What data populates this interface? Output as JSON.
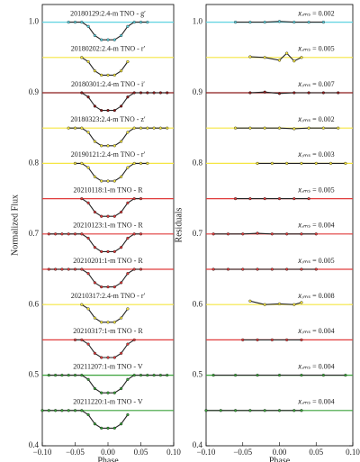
{
  "chart_data": [
    {
      "type": "line",
      "xlabel": "Phase",
      "ylabel": "Normalized Flux",
      "xlim": [
        -0.1,
        0.1
      ],
      "ylim": [
        0.4,
        1.025
      ],
      "xticks": [
        {
          "value": -0.1,
          "label": "−0.10"
        },
        {
          "value": -0.05,
          "label": "−0.05"
        },
        {
          "value": 0,
          "label": "0.00"
        },
        {
          "value": 0.05,
          "label": "0.05"
        },
        {
          "value": 0.1,
          "label": "0.10"
        }
      ],
      "yticks": [
        0.4,
        0.5,
        0.6,
        0.7,
        0.8,
        0.9,
        {
          "value": 1,
          "label": "1.0"
        }
      ],
      "series": [
        {
          "name": "20180129:2.4-m TNO - g′",
          "color": "#5fd3e0",
          "baseline": 1.0,
          "x": [
            -0.06,
            -0.05,
            -0.04,
            -0.03,
            -0.02,
            -0.01,
            0,
            0.01,
            0.02,
            0.03,
            0.04,
            0.05,
            0.06
          ],
          "values": [
            1,
            1,
            1,
            0.994,
            0.981,
            0.975,
            0.975,
            0.975,
            0.981,
            0.994,
            1,
            1,
            1
          ]
        },
        {
          "name": "20180202:2.4-m TNO - r′",
          "color": "#f5e642",
          "baseline": 0.95,
          "x": [
            -0.04,
            -0.03,
            -0.02,
            -0.01,
            0,
            0.01,
            0.02,
            0.03
          ],
          "values": [
            0.95,
            0.944,
            0.931,
            0.925,
            0.925,
            0.925,
            0.931,
            0.944
          ]
        },
        {
          "name": "20180301:2.4-m TNO - i′",
          "color": "#8b1a1a",
          "baseline": 0.9,
          "x": [
            -0.04,
            -0.03,
            -0.02,
            -0.01,
            0,
            0.01,
            0.02,
            0.03,
            0.04,
            0.05,
            0.06,
            0.07,
            0.08,
            0.09
          ],
          "values": [
            0.9,
            0.894,
            0.881,
            0.875,
            0.875,
            0.875,
            0.881,
            0.894,
            0.9,
            0.9,
            0.9,
            0.9,
            0.9,
            0.9
          ]
        },
        {
          "name": "20180323:2.4-m TNO - z′",
          "color": "#f5e642",
          "baseline": 0.85,
          "x": [
            -0.06,
            -0.05,
            -0.04,
            -0.03,
            -0.02,
            -0.01,
            0,
            0.01,
            0.02,
            0.03,
            0.04,
            0.05,
            0.06,
            0.07,
            0.08,
            0.09
          ],
          "values": [
            0.85,
            0.85,
            0.85,
            0.844,
            0.831,
            0.825,
            0.825,
            0.825,
            0.831,
            0.844,
            0.85,
            0.85,
            0.85,
            0.85,
            0.85,
            0.85
          ]
        },
        {
          "name": "20190121:2.4-m TNO - r′",
          "color": "#f5e642",
          "baseline": 0.8,
          "x": [
            -0.05,
            -0.04,
            -0.03,
            -0.02,
            -0.01,
            0,
            0.01,
            0.02,
            0.03,
            0.04,
            0.05,
            0.06
          ],
          "values": [
            0.8,
            0.8,
            0.794,
            0.781,
            0.775,
            0.775,
            0.775,
            0.781,
            0.794,
            0.8,
            0.8,
            0.8
          ]
        },
        {
          "name": "20210118:1-m TNO - R",
          "color": "#e03c3c",
          "baseline": 0.75,
          "x": [
            -0.04,
            -0.03,
            -0.02,
            -0.01,
            0,
            0.01,
            0.02,
            0.03,
            0.04,
            0.05
          ],
          "values": [
            0.75,
            0.744,
            0.731,
            0.725,
            0.725,
            0.725,
            0.731,
            0.744,
            0.75,
            0.75
          ]
        },
        {
          "name": "20210123:1-m TNO - R",
          "color": "#e03c3c",
          "baseline": 0.7,
          "x": [
            -0.09,
            -0.08,
            -0.07,
            -0.06,
            -0.05,
            -0.04,
            -0.03,
            -0.02,
            -0.01,
            0,
            0.01,
            0.02,
            0.03,
            0.04,
            0.05
          ],
          "values": [
            0.7,
            0.7,
            0.7,
            0.7,
            0.7,
            0.7,
            0.694,
            0.681,
            0.675,
            0.675,
            0.675,
            0.681,
            0.694,
            0.7,
            0.7
          ]
        },
        {
          "name": "20210201:1-m TNO - R",
          "color": "#e03c3c",
          "baseline": 0.65,
          "x": [
            -0.09,
            -0.08,
            -0.07,
            -0.06,
            -0.05,
            -0.04,
            -0.03,
            -0.02,
            -0.01,
            0,
            0.01,
            0.02,
            0.03,
            0.04,
            0.05
          ],
          "values": [
            0.65,
            0.65,
            0.65,
            0.65,
            0.65,
            0.65,
            0.644,
            0.631,
            0.625,
            0.625,
            0.625,
            0.631,
            0.644,
            0.65,
            0.65
          ]
        },
        {
          "name": "20210317:2.4-m TNO - r′",
          "color": "#f5e642",
          "baseline": 0.6,
          "x": [
            -0.04,
            -0.03,
            -0.02,
            -0.01,
            0,
            0.01,
            0.02,
            0.03
          ],
          "values": [
            0.6,
            0.594,
            0.581,
            0.575,
            0.575,
            0.575,
            0.581,
            0.594
          ]
        },
        {
          "name": "20210317:1-m TNO - R",
          "color": "#e03c3c",
          "baseline": 0.55,
          "x": [
            -0.05,
            -0.04,
            -0.03,
            -0.02,
            -0.01,
            0,
            0.01,
            0.02,
            0.03,
            0.04
          ],
          "values": [
            0.55,
            0.55,
            0.544,
            0.531,
            0.525,
            0.525,
            0.525,
            0.531,
            0.544,
            0.55
          ]
        },
        {
          "name": "20211207:1-m TNO - V",
          "color": "#3aa23a",
          "baseline": 0.5,
          "x": [
            -0.09,
            -0.08,
            -0.07,
            -0.06,
            -0.05,
            -0.04,
            -0.03,
            -0.02,
            -0.01,
            0,
            0.01,
            0.02,
            0.03,
            0.04,
            0.05,
            0.06,
            0.07,
            0.08,
            0.09
          ],
          "values": [
            0.5,
            0.5,
            0.5,
            0.5,
            0.5,
            0.5,
            0.494,
            0.481,
            0.475,
            0.475,
            0.475,
            0.481,
            0.494,
            0.5,
            0.5,
            0.5,
            0.5,
            0.5,
            0.5
          ]
        },
        {
          "name": "20211220:1-m TNO - V",
          "color": "#3aa23a",
          "baseline": 0.45,
          "x": [
            -0.1,
            -0.09,
            -0.08,
            -0.07,
            -0.06,
            -0.05,
            -0.04,
            -0.03,
            -0.02,
            -0.01,
            0,
            0.01,
            0.02,
            0.03
          ],
          "values": [
            0.45,
            0.45,
            0.45,
            0.45,
            0.45,
            0.45,
            0.45,
            0.444,
            0.431,
            0.425,
            0.425,
            0.425,
            0.431,
            0.444
          ]
        }
      ]
    },
    {
      "type": "line",
      "xlabel": "Phase",
      "ylabel": "Residuals",
      "xlim": [
        -0.1,
        0.1
      ],
      "ylim": [
        0.4,
        1.025
      ],
      "xticks": [
        {
          "value": -0.1,
          "label": "−0.10"
        },
        {
          "value": -0.05,
          "label": "−0.05"
        },
        {
          "value": 0,
          "label": "0.00"
        },
        {
          "value": 0.05,
          "label": "0.05"
        },
        {
          "value": 0.1,
          "label": "0.10"
        }
      ],
      "yticks": [
        0.4,
        0.5,
        0.6,
        0.7,
        0.8,
        0.9,
        {
          "value": 1,
          "label": "1.0"
        }
      ],
      "series": [
        {
          "name": "𝑥ᵣₘₛ = 0.002",
          "color": "#5fd3e0",
          "baseline": 1.0,
          "x": [
            -0.06,
            -0.04,
            -0.02,
            0,
            0.02,
            0.04,
            0.06
          ],
          "values": [
            1,
            1,
            1,
            1.001,
            1,
            1,
            1
          ]
        },
        {
          "name": "𝑥ᵣₘₛ = 0.005",
          "color": "#f5e642",
          "baseline": 0.95,
          "x": [
            -0.04,
            -0.02,
            0,
            0.01,
            0.02,
            0.03
          ],
          "values": [
            0.951,
            0.95,
            0.946,
            0.956,
            0.945,
            0.95
          ]
        },
        {
          "name": "𝑥ᵣₘₛ = 0.007",
          "color": "#8b1a1a",
          "baseline": 0.9,
          "x": [
            -0.04,
            -0.02,
            0,
            0.02,
            0.04,
            0.06,
            0.08
          ],
          "values": [
            0.9,
            0.901,
            0.899,
            0.9,
            0.9,
            0.9,
            0.9
          ]
        },
        {
          "name": "𝑥ᵣₘₛ = 0.002",
          "color": "#f5e642",
          "baseline": 0.85,
          "x": [
            -0.06,
            -0.04,
            -0.02,
            0,
            0.02,
            0.04,
            0.06,
            0.08
          ],
          "values": [
            0.85,
            0.85,
            0.85,
            0.85,
            0.849,
            0.85,
            0.85,
            0.85
          ]
        },
        {
          "name": "𝑥ᵣₘₛ = 0.003",
          "color": "#f5e642",
          "baseline": 0.8,
          "x": [
            -0.03,
            -0.01,
            0.01,
            0.03,
            0.05,
            0.07,
            0.09
          ],
          "values": [
            0.8,
            0.8,
            0.8,
            0.8,
            0.8,
            0.8,
            0.8
          ]
        },
        {
          "name": "𝑥ᵣₘₛ = 0.005",
          "color": "#e03c3c",
          "baseline": 0.75,
          "x": [
            -0.06,
            -0.04,
            -0.02,
            0,
            0.02,
            0.04
          ],
          "values": [
            0.75,
            0.75,
            0.75,
            0.75,
            0.75,
            0.75
          ]
        },
        {
          "name": "𝑥ᵣₘₛ = 0.004",
          "color": "#e03c3c",
          "baseline": 0.7,
          "x": [
            -0.09,
            -0.07,
            -0.05,
            -0.03,
            -0.01,
            0.01,
            0.03,
            0.05
          ],
          "values": [
            0.7,
            0.7,
            0.7,
            0.701,
            0.7,
            0.7,
            0.7,
            0.7
          ]
        },
        {
          "name": "𝑥ᵣₘₛ = 0.005",
          "color": "#e03c3c",
          "baseline": 0.65,
          "x": [
            -0.09,
            -0.07,
            -0.05,
            -0.03,
            -0.01,
            0.01,
            0.03,
            0.05
          ],
          "values": [
            0.65,
            0.65,
            0.65,
            0.65,
            0.65,
            0.65,
            0.65,
            0.65
          ]
        },
        {
          "name": "𝑥ᵣₘₛ = 0.008",
          "color": "#f5e642",
          "baseline": 0.6,
          "x": [
            -0.04,
            -0.02,
            0,
            0.02,
            0.03
          ],
          "values": [
            0.605,
            0.6,
            0.601,
            0.6,
            0.603
          ]
        },
        {
          "name": "𝑥ᵣₘₛ = 0.004",
          "color": "#e03c3c",
          "baseline": 0.55,
          "x": [
            -0.05,
            -0.03,
            -0.01,
            0.01,
            0.03
          ],
          "values": [
            0.55,
            0.55,
            0.55,
            0.55,
            0.55
          ]
        },
        {
          "name": "𝑥ᵣₘₛ = 0.004",
          "color": "#3aa23a",
          "baseline": 0.5,
          "x": [
            -0.09,
            -0.06,
            -0.03,
            0,
            0.03,
            0.06,
            0.09
          ],
          "values": [
            0.5,
            0.5,
            0.5,
            0.5,
            0.5,
            0.5,
            0.5
          ]
        },
        {
          "name": "𝑥ᵣₘₛ = 0.004",
          "color": "#3aa23a",
          "baseline": 0.45,
          "x": [
            -0.1,
            -0.08,
            -0.06,
            -0.04,
            -0.02,
            0,
            0.02,
            0.03
          ],
          "values": [
            0.45,
            0.45,
            0.45,
            0.45,
            0.45,
            0.45,
            0.45,
            0.45
          ]
        }
      ]
    }
  ]
}
